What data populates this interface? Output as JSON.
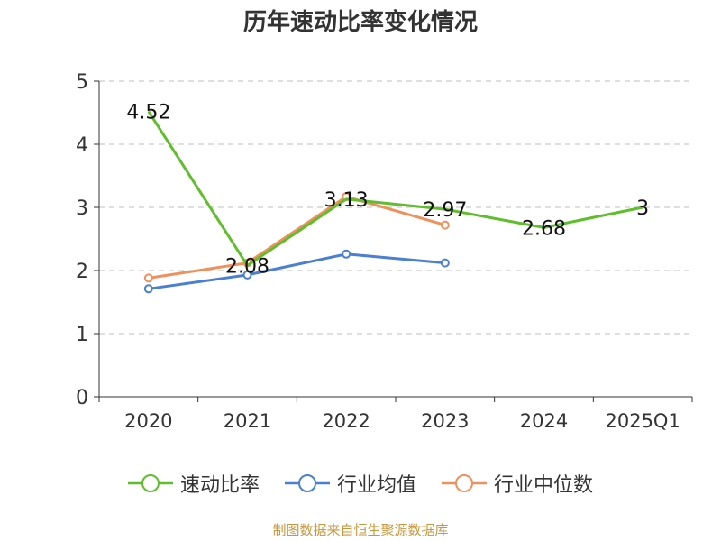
{
  "source_note": "制图数据来自恒生聚源数据库",
  "chart_data": {
    "type": "line",
    "title": "历年速动比率变化情况",
    "categories": [
      "2020",
      "2021",
      "2022",
      "2023",
      "2024",
      "2025Q1"
    ],
    "ylim": [
      0,
      5
    ],
    "yticks": [
      0,
      1,
      2,
      3,
      4,
      5
    ],
    "grid": true,
    "legend_position": "bottom",
    "series": [
      {
        "name": "速动比率",
        "color": "#5fbe2c",
        "values": [
          4.52,
          2.08,
          3.13,
          2.97,
          2.68,
          3
        ],
        "labels": [
          "4.52",
          "2.08",
          "3.13",
          "2.97",
          "2.68",
          "3"
        ],
        "markers": false
      },
      {
        "name": "行业均值",
        "color": "#4a7fd4",
        "values": [
          1.71,
          1.93,
          2.26,
          2.12,
          null,
          null
        ],
        "markers": true
      },
      {
        "name": "行业中位数",
        "color": "#f0905c",
        "values": [
          1.88,
          2.12,
          3.17,
          2.72,
          null,
          null
        ],
        "markers": true
      }
    ]
  }
}
